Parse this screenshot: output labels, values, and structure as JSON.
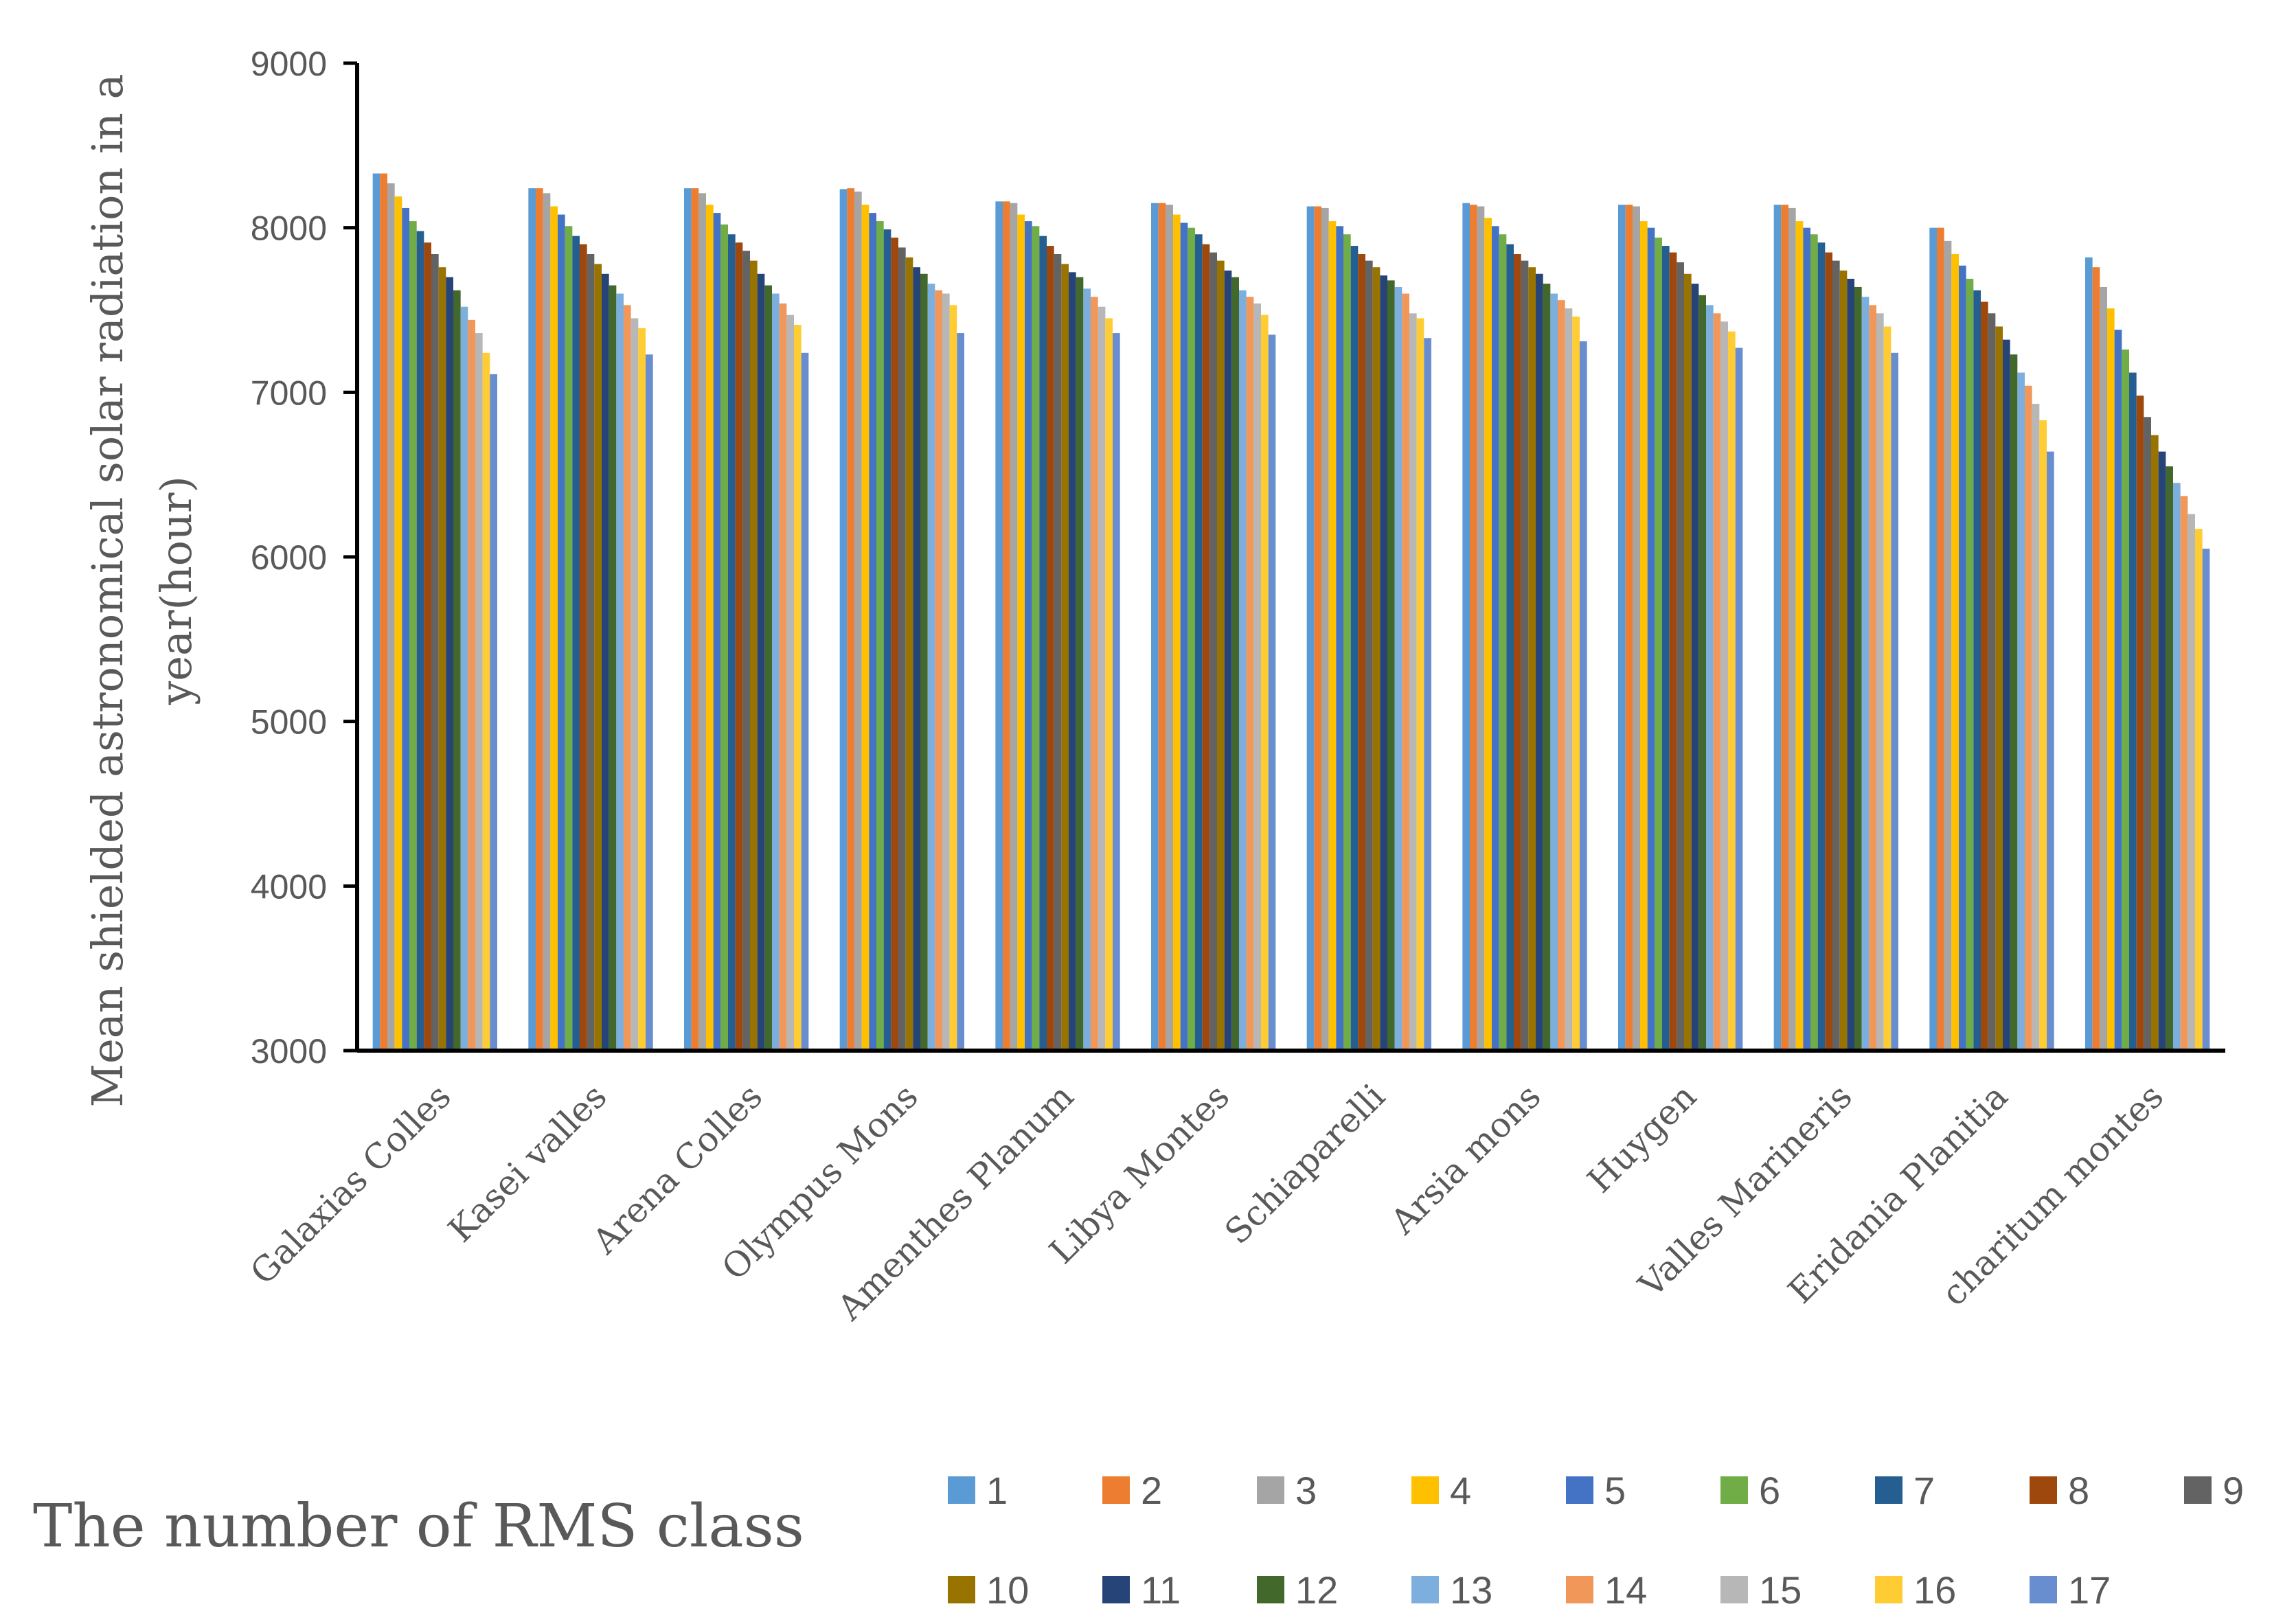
{
  "chart_data": {
    "type": "bar",
    "ylabel_line1": "Mean shielded astronomical solar radiation in a",
    "ylabel_line2": "year(hour)",
    "legend_title": "The number of RMS class",
    "ylim": [
      3000,
      9000
    ],
    "yticks": [
      3000,
      4000,
      5000,
      6000,
      7000,
      8000,
      9000
    ],
    "categories": [
      "Galaxias Colles",
      "Kasei valles",
      "Arena Colles",
      "Olympus Mons",
      "Amenthes Planum",
      "Libya Montes",
      "Schiaparelli",
      "Arsia mons",
      "Huygen",
      "Valles Marineris",
      "Eridania Planitia",
      "charitum montes"
    ],
    "series": [
      {
        "name": "1",
        "color": "#5B9BD5",
        "values": [
          8330,
          8240,
          8240,
          8235,
          8160,
          8150,
          8130,
          8150,
          8140,
          8140,
          8000,
          7820
        ]
      },
      {
        "name": "2",
        "color": "#ED7D31",
        "values": [
          8330,
          8240,
          8240,
          8240,
          8160,
          8150,
          8130,
          8140,
          8140,
          8140,
          8000,
          7760
        ]
      },
      {
        "name": "3",
        "color": "#A5A5A5",
        "values": [
          8270,
          8210,
          8210,
          8220,
          8150,
          8140,
          8120,
          8130,
          8130,
          8120,
          7920,
          7640
        ]
      },
      {
        "name": "4",
        "color": "#FFC000",
        "values": [
          8190,
          8130,
          8140,
          8140,
          8080,
          8080,
          8040,
          8060,
          8040,
          8040,
          7840,
          7510
        ]
      },
      {
        "name": "5",
        "color": "#4472C4",
        "values": [
          8120,
          8080,
          8090,
          8090,
          8040,
          8030,
          8010,
          8010,
          8000,
          8000,
          7770,
          7380
        ]
      },
      {
        "name": "6",
        "color": "#70AD47",
        "values": [
          8040,
          8010,
          8020,
          8040,
          8010,
          8000,
          7960,
          7960,
          7940,
          7960,
          7690,
          7260
        ]
      },
      {
        "name": "7",
        "color": "#255E91",
        "values": [
          7980,
          7950,
          7960,
          7990,
          7950,
          7960,
          7890,
          7900,
          7890,
          7910,
          7620,
          7120
        ]
      },
      {
        "name": "8",
        "color": "#9E480E",
        "values": [
          7910,
          7900,
          7910,
          7940,
          7890,
          7900,
          7840,
          7840,
          7850,
          7850,
          7550,
          6980
        ]
      },
      {
        "name": "9",
        "color": "#636363",
        "values": [
          7840,
          7840,
          7860,
          7880,
          7840,
          7850,
          7800,
          7800,
          7790,
          7800,
          7480,
          6850
        ]
      },
      {
        "name": "10",
        "color": "#997300",
        "values": [
          7760,
          7780,
          7800,
          7820,
          7780,
          7800,
          7760,
          7760,
          7720,
          7740,
          7400,
          6740
        ]
      },
      {
        "name": "11",
        "color": "#264478",
        "values": [
          7700,
          7720,
          7720,
          7760,
          7730,
          7740,
          7710,
          7720,
          7660,
          7690,
          7320,
          6640
        ]
      },
      {
        "name": "12",
        "color": "#43682B",
        "values": [
          7620,
          7650,
          7650,
          7720,
          7700,
          7700,
          7680,
          7660,
          7590,
          7640,
          7230,
          6550
        ]
      },
      {
        "name": "13",
        "color": "#7CAFDD",
        "values": [
          7520,
          7600,
          7600,
          7660,
          7630,
          7620,
          7640,
          7600,
          7530,
          7580,
          7120,
          6450
        ]
      },
      {
        "name": "14",
        "color": "#F1975A",
        "values": [
          7440,
          7530,
          7540,
          7620,
          7580,
          7580,
          7600,
          7560,
          7480,
          7530,
          7040,
          6370
        ]
      },
      {
        "name": "15",
        "color": "#B7B7B7",
        "values": [
          7360,
          7450,
          7470,
          7600,
          7520,
          7540,
          7480,
          7510,
          7430,
          7480,
          6930,
          6260
        ]
      },
      {
        "name": "16",
        "color": "#FFCD33",
        "values": [
          7240,
          7390,
          7410,
          7530,
          7450,
          7470,
          7450,
          7460,
          7370,
          7400,
          6830,
          6170
        ]
      },
      {
        "name": "17",
        "color": "#698ED0",
        "values": [
          7110,
          7230,
          7240,
          7360,
          7360,
          7350,
          7330,
          7310,
          7270,
          7240,
          6640,
          6050
        ]
      }
    ]
  }
}
